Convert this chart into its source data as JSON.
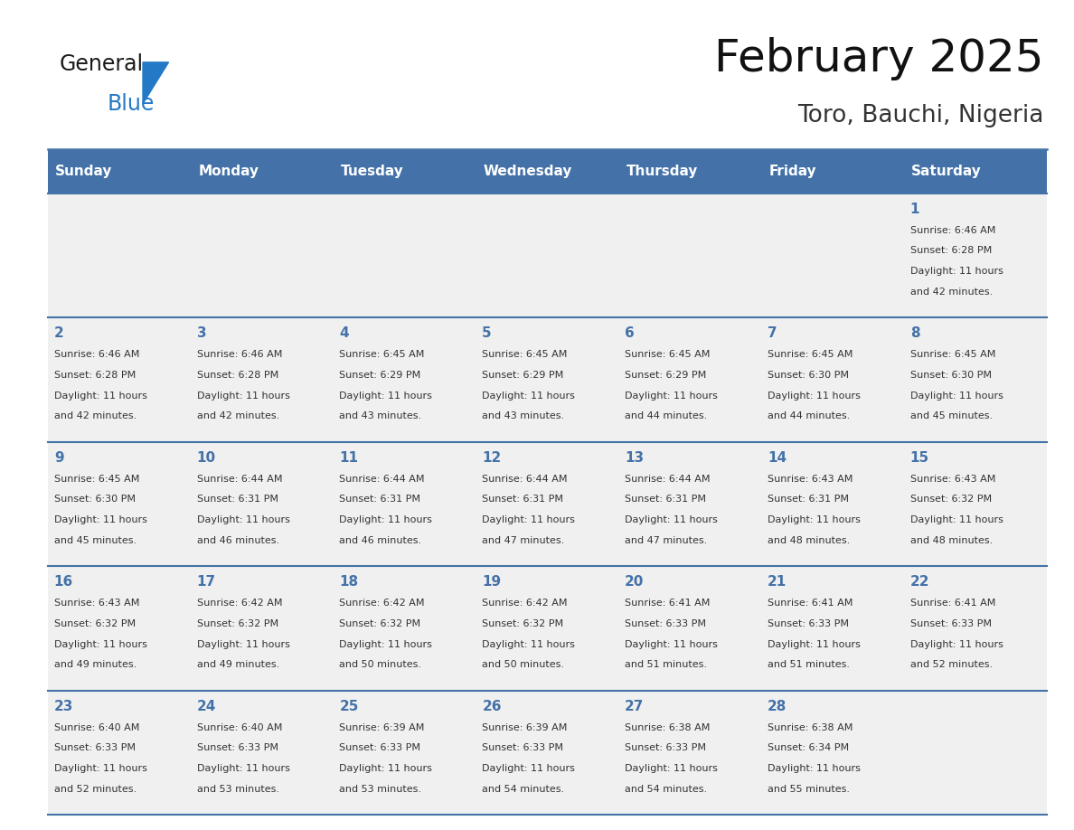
{
  "title": "February 2025",
  "subtitle": "Toro, Bauchi, Nigeria",
  "days_of_week": [
    "Sunday",
    "Monday",
    "Tuesday",
    "Wednesday",
    "Thursday",
    "Friday",
    "Saturday"
  ],
  "header_bg": "#4472a8",
  "header_text": "#ffffff",
  "row_bg": "#f0f0f0",
  "cell_border": "#4472a8",
  "day_num_color": "#4472a8",
  "info_color": "#333333",
  "logo_general_color": "#1a1a1a",
  "logo_blue_color": "#2479c7",
  "logo_triangle_color": "#2479c7",
  "calendar_data": [
    {
      "day": 1,
      "col": 6,
      "row": 0,
      "sunrise": "6:46 AM",
      "sunset": "6:28 PM",
      "daylight": "11 hours and 42 minutes."
    },
    {
      "day": 2,
      "col": 0,
      "row": 1,
      "sunrise": "6:46 AM",
      "sunset": "6:28 PM",
      "daylight": "11 hours and 42 minutes."
    },
    {
      "day": 3,
      "col": 1,
      "row": 1,
      "sunrise": "6:46 AM",
      "sunset": "6:28 PM",
      "daylight": "11 hours and 42 minutes."
    },
    {
      "day": 4,
      "col": 2,
      "row": 1,
      "sunrise": "6:45 AM",
      "sunset": "6:29 PM",
      "daylight": "11 hours and 43 minutes."
    },
    {
      "day": 5,
      "col": 3,
      "row": 1,
      "sunrise": "6:45 AM",
      "sunset": "6:29 PM",
      "daylight": "11 hours and 43 minutes."
    },
    {
      "day": 6,
      "col": 4,
      "row": 1,
      "sunrise": "6:45 AM",
      "sunset": "6:29 PM",
      "daylight": "11 hours and 44 minutes."
    },
    {
      "day": 7,
      "col": 5,
      "row": 1,
      "sunrise": "6:45 AM",
      "sunset": "6:30 PM",
      "daylight": "11 hours and 44 minutes."
    },
    {
      "day": 8,
      "col": 6,
      "row": 1,
      "sunrise": "6:45 AM",
      "sunset": "6:30 PM",
      "daylight": "11 hours and 45 minutes."
    },
    {
      "day": 9,
      "col": 0,
      "row": 2,
      "sunrise": "6:45 AM",
      "sunset": "6:30 PM",
      "daylight": "11 hours and 45 minutes."
    },
    {
      "day": 10,
      "col": 1,
      "row": 2,
      "sunrise": "6:44 AM",
      "sunset": "6:31 PM",
      "daylight": "11 hours and 46 minutes."
    },
    {
      "day": 11,
      "col": 2,
      "row": 2,
      "sunrise": "6:44 AM",
      "sunset": "6:31 PM",
      "daylight": "11 hours and 46 minutes."
    },
    {
      "day": 12,
      "col": 3,
      "row": 2,
      "sunrise": "6:44 AM",
      "sunset": "6:31 PM",
      "daylight": "11 hours and 47 minutes."
    },
    {
      "day": 13,
      "col": 4,
      "row": 2,
      "sunrise": "6:44 AM",
      "sunset": "6:31 PM",
      "daylight": "11 hours and 47 minutes."
    },
    {
      "day": 14,
      "col": 5,
      "row": 2,
      "sunrise": "6:43 AM",
      "sunset": "6:31 PM",
      "daylight": "11 hours and 48 minutes."
    },
    {
      "day": 15,
      "col": 6,
      "row": 2,
      "sunrise": "6:43 AM",
      "sunset": "6:32 PM",
      "daylight": "11 hours and 48 minutes."
    },
    {
      "day": 16,
      "col": 0,
      "row": 3,
      "sunrise": "6:43 AM",
      "sunset": "6:32 PM",
      "daylight": "11 hours and 49 minutes."
    },
    {
      "day": 17,
      "col": 1,
      "row": 3,
      "sunrise": "6:42 AM",
      "sunset": "6:32 PM",
      "daylight": "11 hours and 49 minutes."
    },
    {
      "day": 18,
      "col": 2,
      "row": 3,
      "sunrise": "6:42 AM",
      "sunset": "6:32 PM",
      "daylight": "11 hours and 50 minutes."
    },
    {
      "day": 19,
      "col": 3,
      "row": 3,
      "sunrise": "6:42 AM",
      "sunset": "6:32 PM",
      "daylight": "11 hours and 50 minutes."
    },
    {
      "day": 20,
      "col": 4,
      "row": 3,
      "sunrise": "6:41 AM",
      "sunset": "6:33 PM",
      "daylight": "11 hours and 51 minutes."
    },
    {
      "day": 21,
      "col": 5,
      "row": 3,
      "sunrise": "6:41 AM",
      "sunset": "6:33 PM",
      "daylight": "11 hours and 51 minutes."
    },
    {
      "day": 22,
      "col": 6,
      "row": 3,
      "sunrise": "6:41 AM",
      "sunset": "6:33 PM",
      "daylight": "11 hours and 52 minutes."
    },
    {
      "day": 23,
      "col": 0,
      "row": 4,
      "sunrise": "6:40 AM",
      "sunset": "6:33 PM",
      "daylight": "11 hours and 52 minutes."
    },
    {
      "day": 24,
      "col": 1,
      "row": 4,
      "sunrise": "6:40 AM",
      "sunset": "6:33 PM",
      "daylight": "11 hours and 53 minutes."
    },
    {
      "day": 25,
      "col": 2,
      "row": 4,
      "sunrise": "6:39 AM",
      "sunset": "6:33 PM",
      "daylight": "11 hours and 53 minutes."
    },
    {
      "day": 26,
      "col": 3,
      "row": 4,
      "sunrise": "6:39 AM",
      "sunset": "6:33 PM",
      "daylight": "11 hours and 54 minutes."
    },
    {
      "day": 27,
      "col": 4,
      "row": 4,
      "sunrise": "6:38 AM",
      "sunset": "6:33 PM",
      "daylight": "11 hours and 54 minutes."
    },
    {
      "day": 28,
      "col": 5,
      "row": 4,
      "sunrise": "6:38 AM",
      "sunset": "6:34 PM",
      "daylight": "11 hours and 55 minutes."
    }
  ]
}
